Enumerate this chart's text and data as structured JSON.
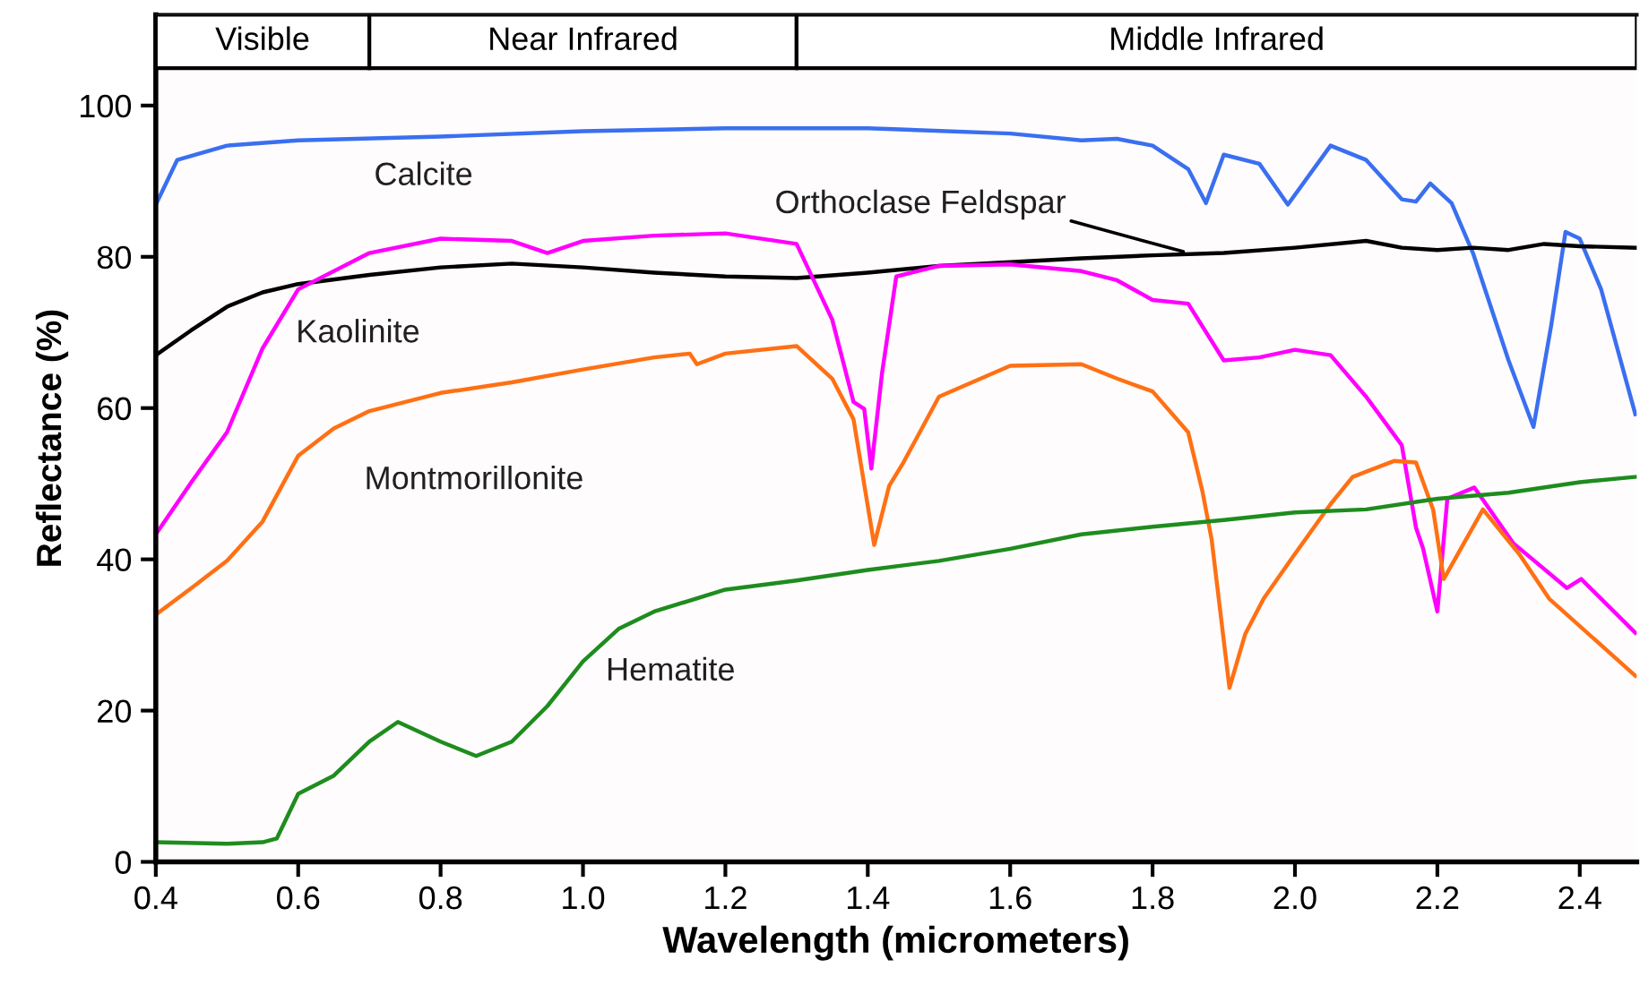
{
  "chart_data": {
    "type": "line",
    "xlabel": "Wavelength (micrometers)",
    "ylabel": "Reflectance (%)",
    "xlim": [
      0.4,
      2.48
    ],
    "ylim": [
      0,
      112
    ],
    "xticks": [
      0.4,
      0.6,
      0.8,
      {
        "value": 1,
        "label": "1.0"
      },
      1.2,
      1.4,
      1.6,
      1.8,
      {
        "value": 2,
        "label": "2.0"
      },
      2.2,
      2.4
    ],
    "yticks": [
      0,
      20,
      40,
      60,
      80,
      100
    ],
    "grid": false,
    "legend": false,
    "marker": "none",
    "line_style": "solid",
    "bands": [
      {
        "axis": "x",
        "from": 0.4,
        "to": 0.7,
        "label": "Visible",
        "color": "#ffffff"
      },
      {
        "axis": "x",
        "from": 0.7,
        "to": 1.3,
        "label": "Near Infrared",
        "color": "#ffffff"
      },
      {
        "axis": "x",
        "from": 1.3,
        "to": 2.48,
        "label": "Middle Infrared",
        "color": "#ffffff"
      }
    ],
    "series": [
      {
        "name": "Calcite",
        "color": "#3a6ff0",
        "x": [
          0.4,
          0.43,
          0.5,
          0.6,
          0.8,
          1.0,
          1.2,
          1.4,
          1.6,
          1.7,
          1.75,
          1.8,
          1.85,
          1.875,
          1.9,
          1.95,
          1.99,
          2.05,
          2.1,
          2.15,
          2.17,
          2.19,
          2.22,
          2.25,
          2.3,
          2.335,
          2.36,
          2.38,
          2.4,
          2.43,
          2.478
        ],
        "values": [
          86.9,
          92.8,
          94.7,
          95.4,
          95.9,
          96.6,
          97,
          97,
          96.3,
          95.4,
          95.6,
          94.7,
          91.6,
          87.1,
          93.5,
          92.3,
          86.9,
          94.7,
          92.8,
          87.6,
          87.3,
          89.7,
          87.1,
          80.5,
          66.3,
          57.5,
          71,
          83.3,
          82.4,
          75.7,
          59.2
        ]
      },
      {
        "name": "Orthoclase Feldspar",
        "color": "#000000",
        "x": [
          0.4,
          0.45,
          0.5,
          0.55,
          0.6,
          0.7,
          0.8,
          0.9,
          1.0,
          1.1,
          1.2,
          1.3,
          1.4,
          1.5,
          1.6,
          1.7,
          1.8,
          1.9,
          2.0,
          2.1,
          2.15,
          2.2,
          2.25,
          2.3,
          2.35,
          2.4,
          2.478
        ],
        "values": [
          67,
          70.3,
          73.4,
          75.3,
          76.4,
          77.6,
          78.6,
          79.1,
          78.6,
          77.9,
          77.4,
          77.2,
          77.9,
          78.8,
          79.3,
          79.8,
          80.2,
          80.5,
          81.2,
          82.1,
          81.2,
          80.9,
          81.2,
          80.9,
          81.7,
          81.4,
          81.2
        ]
      },
      {
        "name": "Kaolinite",
        "color": "#ff00ff",
        "x": [
          0.4,
          0.45,
          0.5,
          0.55,
          0.6,
          0.7,
          0.8,
          0.9,
          0.95,
          1.0,
          1.1,
          1.2,
          1.3,
          1.35,
          1.38,
          1.395,
          1.405,
          1.42,
          1.44,
          1.5,
          1.6,
          1.7,
          1.75,
          1.8,
          1.85,
          1.9,
          1.95,
          2.0,
          2.05,
          2.1,
          2.15,
          2.17,
          2.18,
          2.2,
          2.214,
          2.252,
          2.307,
          2.382,
          2.402,
          2.478
        ],
        "values": [
          43.3,
          50.2,
          56.8,
          67.9,
          75.7,
          80.5,
          82.4,
          82.1,
          80.5,
          82.1,
          82.8,
          83.1,
          81.7,
          71.7,
          60.8,
          59.9,
          52,
          64.6,
          77.4,
          78.8,
          79,
          78.1,
          76.9,
          74.3,
          73.8,
          66.3,
          66.7,
          67.7,
          67,
          61.5,
          55.1,
          44.2,
          41.4,
          33.1,
          48,
          49.5,
          42.1,
          36.2,
          37.4,
          30.3
        ]
      },
      {
        "name": "Montmorillonite",
        "color": "#ff7014",
        "x": [
          0.4,
          0.45,
          0.5,
          0.55,
          0.6,
          0.65,
          0.7,
          0.8,
          0.9,
          1.0,
          1.1,
          1.15,
          1.16,
          1.2,
          1.3,
          1.35,
          1.38,
          1.409,
          1.43,
          1.45,
          1.5,
          1.6,
          1.7,
          1.75,
          1.8,
          1.85,
          1.87,
          1.883,
          1.908,
          1.93,
          1.956,
          1.996,
          2.05,
          2.081,
          2.139,
          2.17,
          2.194,
          2.209,
          2.264,
          2.315,
          2.357,
          2.478
        ],
        "values": [
          32.7,
          36.2,
          39.8,
          45,
          53.7,
          57.3,
          59.6,
          62,
          63.4,
          65.1,
          66.7,
          67.2,
          65.8,
          67.2,
          68.2,
          63.9,
          58.5,
          41.9,
          49.7,
          52.8,
          61.5,
          65.6,
          65.8,
          63.9,
          62.2,
          56.8,
          49,
          42.6,
          23,
          30.1,
          34.8,
          40.2,
          47.3,
          50.9,
          53,
          52.8,
          46.6,
          37.4,
          46.6,
          40.7,
          34.8,
          24.6
        ]
      },
      {
        "name": "Hematite",
        "color": "#1e8c1e",
        "x": [
          0.4,
          0.5,
          0.55,
          0.57,
          0.6,
          0.65,
          0.7,
          0.74,
          0.8,
          0.85,
          0.9,
          0.95,
          1.0,
          1.05,
          1.1,
          1.2,
          1.3,
          1.4,
          1.5,
          1.6,
          1.7,
          1.8,
          1.9,
          2.0,
          2.1,
          2.2,
          2.3,
          2.4,
          2.478
        ],
        "values": [
          2.6,
          2.4,
          2.6,
          3.1,
          9,
          11.4,
          15.9,
          18.5,
          15.9,
          14,
          15.9,
          20.6,
          26.5,
          30.8,
          33.1,
          36,
          37.2,
          38.6,
          39.8,
          41.4,
          43.3,
          44.3,
          45.2,
          46.2,
          46.6,
          48,
          48.8,
          50.2,
          50.9
        ]
      }
    ]
  }
}
